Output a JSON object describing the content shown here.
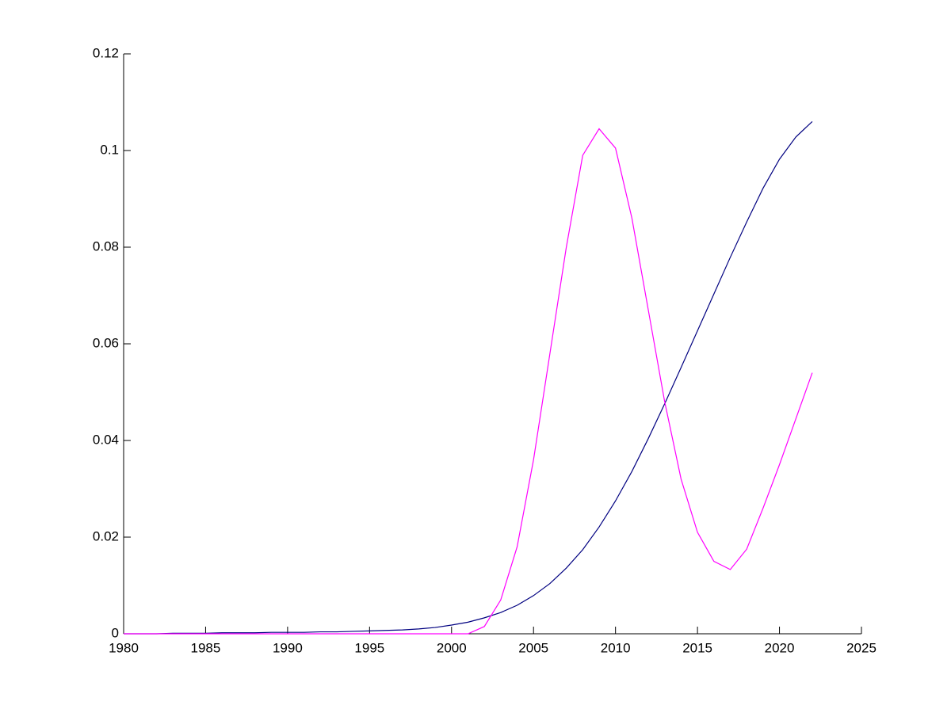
{
  "chart_data": {
    "type": "line",
    "x": [
      1980,
      1981,
      1982,
      1983,
      1984,
      1985,
      1986,
      1987,
      1988,
      1989,
      1990,
      1991,
      1992,
      1993,
      1994,
      1995,
      1996,
      1997,
      1998,
      1999,
      2000,
      2001,
      2002,
      2003,
      2004,
      2005,
      2006,
      2007,
      2008,
      2009,
      2010,
      2011,
      2012,
      2013,
      2014,
      2015,
      2016,
      2017,
      2018,
      2019,
      2020,
      2021,
      2022
    ],
    "series": [
      {
        "color": "#000080",
        "values": [
          0,
          0,
          0,
          0.0001,
          0.0001,
          0.0001,
          0.0002,
          0.0002,
          0.0002,
          0.0003,
          0.0003,
          0.0003,
          0.0004,
          0.0004,
          0.0005,
          0.0006,
          0.0007,
          0.0008,
          0.001,
          0.0013,
          0.0018,
          0.0024,
          0.0033,
          0.0044,
          0.0059,
          0.0079,
          0.0104,
          0.0136,
          0.0174,
          0.0221,
          0.0275,
          0.0336,
          0.0404,
          0.0476,
          0.0551,
          0.0627,
          0.0703,
          0.0779,
          0.0852,
          0.0922,
          0.0982,
          0.1028,
          0.106
        ]
      },
      {
        "color": "#ff00ff",
        "values": [
          0,
          0,
          0,
          0,
          0,
          0,
          0,
          0,
          0,
          0,
          0,
          0,
          0,
          0,
          0,
          0,
          0,
          0,
          0,
          0,
          0,
          0,
          0.0015,
          0.007,
          0.018,
          0.036,
          0.058,
          0.08,
          0.099,
          0.1045,
          0.1005,
          0.086,
          0.067,
          0.048,
          0.032,
          0.021,
          0.015,
          0.0133,
          0.0175,
          0.026,
          0.035,
          0.0445,
          0.054
        ]
      }
    ],
    "xlim": [
      1980,
      2025
    ],
    "xticks": [
      1980,
      1985,
      1990,
      1995,
      2000,
      2005,
      2010,
      2015,
      2020,
      2025
    ],
    "ylim": [
      0,
      0.12
    ],
    "yticks": [
      0,
      0.02,
      0.04,
      0.06,
      0.08,
      0.1,
      0.12
    ]
  }
}
